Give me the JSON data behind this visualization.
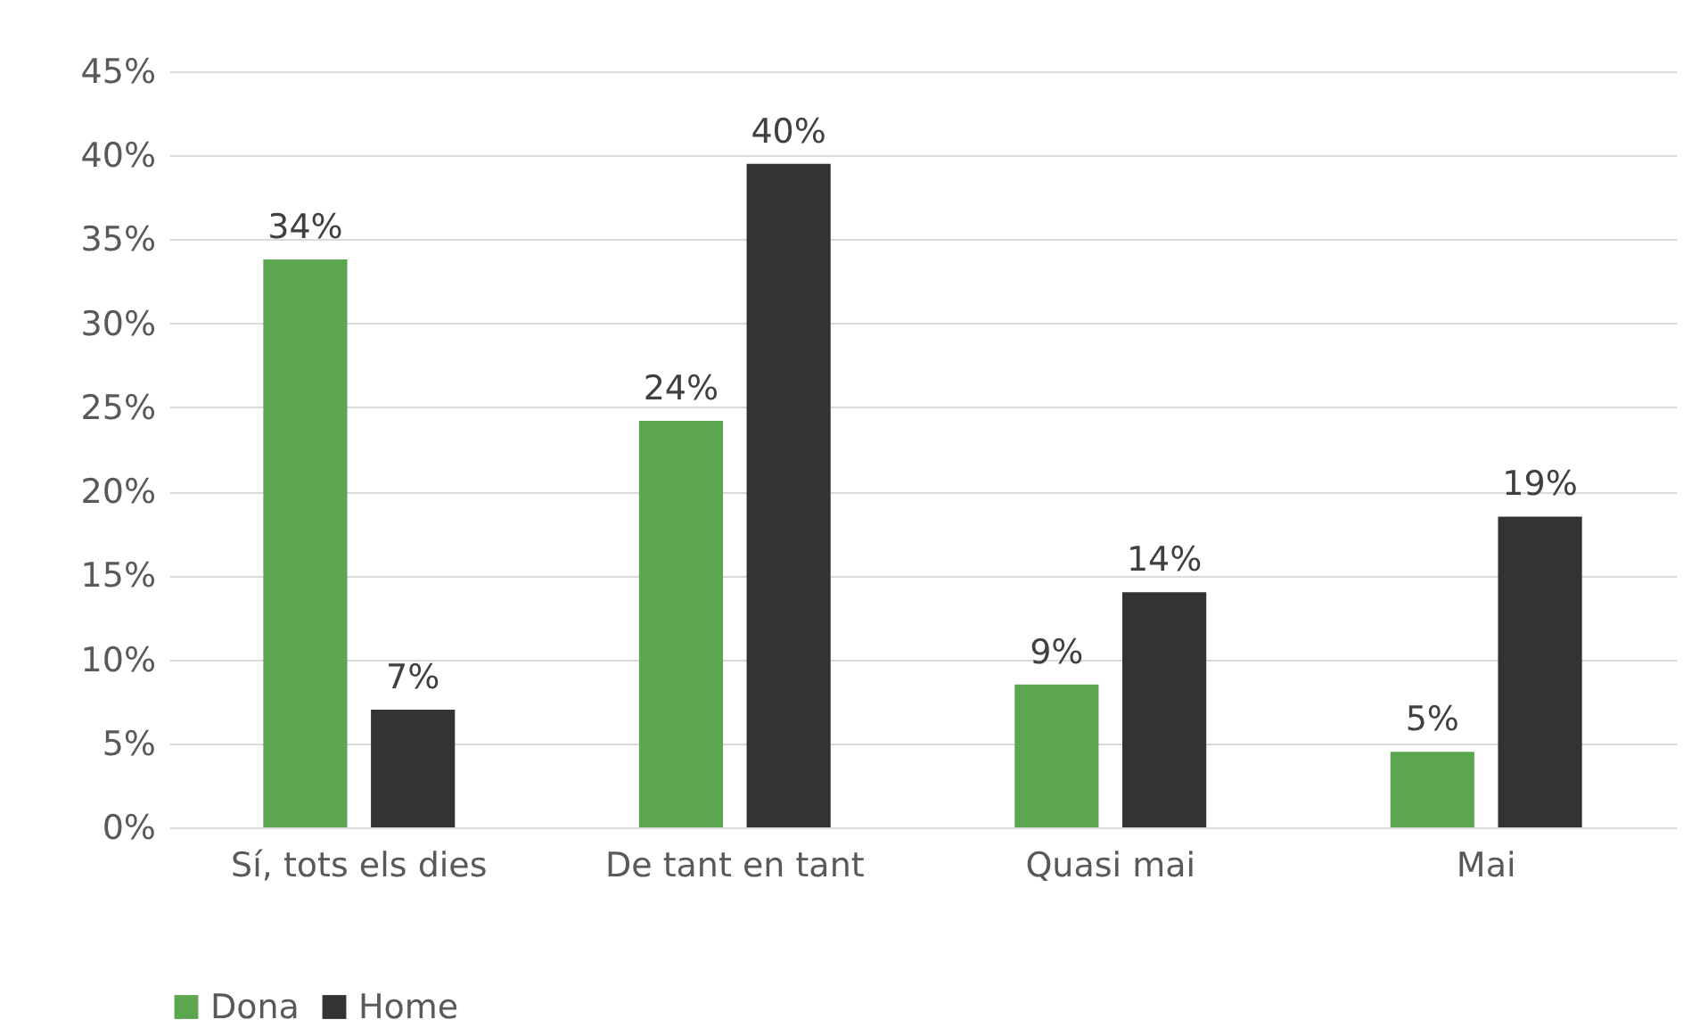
{
  "chart_data": {
    "type": "bar",
    "categories": [
      "Sí, tots els dies",
      "De tant en tant",
      "Quasi mai",
      "Mai"
    ],
    "series": [
      {
        "name": "Dona",
        "color": "#5ba64f",
        "values": [
          33.8,
          24.2,
          8.5,
          4.5
        ],
        "value_labels": [
          "34%",
          "24%",
          "9%",
          "5%"
        ]
      },
      {
        "name": "Home",
        "color": "#333333",
        "values": [
          7.0,
          39.5,
          14.0,
          18.5
        ],
        "value_labels": [
          "7%",
          "40%",
          "14%",
          "19%"
        ]
      }
    ],
    "ylim": [
      0,
      45
    ],
    "yticks": [
      {
        "value": 0,
        "label": "0%"
      },
      {
        "value": 5,
        "label": "5%"
      },
      {
        "value": 10,
        "label": "10%"
      },
      {
        "value": 15,
        "label": "15%"
      },
      {
        "value": 20,
        "label": "20%"
      },
      {
        "value": 25,
        "label": "25%"
      },
      {
        "value": 30,
        "label": "30%"
      },
      {
        "value": 35,
        "label": "35%"
      },
      {
        "value": 40,
        "label": "40%"
      },
      {
        "value": 45,
        "label": "45%"
      }
    ],
    "grid": "y",
    "legend": "bottom"
  }
}
